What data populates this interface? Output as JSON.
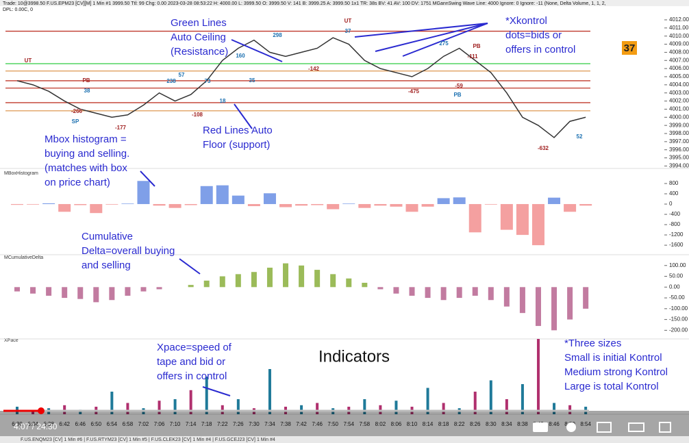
{
  "header": {
    "info": "Trade: 10@3998.50 F.US.EPM23 [CV][M] 1 Min #1 3999.50 Ttl: 99 Chg: 0.00 2023-03-28 08:53:22 H: 4000.00 L: 3999.50 O: 3999.50 V: 141 B: 3999.25 A: 3999.50 1x1 TR: 38s BV: 41 AV: 100 DV: 1751 MGannSwing Wave Line: 4000 Ignore: 0 Ignore: -11 (None, Delta Volume, 1, 1, 2,",
    "sub": "DPL: 0.00C, 0"
  },
  "badge": "37",
  "panel_labels": [
    "MBoxHistogram",
    "MCumulativeDelta",
    "XPace"
  ],
  "annotations": [
    [
      "Green Lines",
      "Auto Ceiling",
      "(Resistance)"
    ],
    [
      "Red Lines Auto",
      "Floor (support)"
    ],
    [
      "Mbox histogram =",
      "buying and selling.",
      "(matches with box",
      "on price chart)"
    ],
    [
      "Cumulative",
      "Delta=overall buying",
      "and selling"
    ],
    [
      "Xpace=speed of",
      "tape and bid or",
      "offers in control"
    ],
    [
      "*Xkontrol",
      "dots=bids or",
      "offers in control"
    ],
    [
      "*Three sizes",
      "Small is initial Kontrol",
      "Medium strong Kontrol",
      "Large is total Kontrol"
    ]
  ],
  "title_overlay": "Indicators",
  "swing_labels": [
    "298",
    "37",
    "275",
    "-111",
    "160",
    "-142",
    "57",
    "238",
    "73",
    "38",
    "PB",
    "PB",
    "UT",
    "UT",
    "-266",
    "SP",
    "-177",
    "-108",
    "35",
    "-475",
    "-59",
    "PB",
    "-632",
    "52",
    "18"
  ],
  "video_time": "4:07 / 24:30",
  "tabs": "F.US.ENQM23 [CV] 1 Min #6 | F.US.RTYM23 [CV] 1 Min #5 | F.US.CLEK23 [CV] 1 Min #4 | F.US.GCEJ23 [CV] 1 Min #4",
  "chart_data": [
    {
      "type": "line",
      "name": "price",
      "color": "#333333",
      "values": [
        4004.5,
        4004,
        4003.2,
        4002,
        4001,
        4000.5,
        4000,
        4000.3,
        4001.5,
        4003,
        4002,
        4002.8,
        4004.5,
        4007,
        4008.5,
        4009.5,
        4008,
        4007.5,
        4008,
        4008.5,
        4009.8,
        4009,
        4007,
        4006,
        4005.5,
        4005,
        4006,
        4007.5,
        4008.5,
        4007,
        4005.5,
        4003,
        4000,
        3999,
        3997.5,
        3999.5,
        4000
      ],
      "ylim": [
        3993.7,
        4013.6
      ],
      "yticks": [
        {
          "value": 4012,
          "label": "4012.00"
        },
        {
          "value": 4011,
          "label": "4011.00"
        },
        {
          "value": 4010,
          "label": "4010.00"
        },
        {
          "value": 4009,
          "label": "4009.00"
        },
        {
          "value": 4008,
          "label": "4008.00"
        },
        {
          "value": 4007,
          "label": "4007.00"
        },
        {
          "value": 4006,
          "label": "4006.00"
        },
        {
          "value": 4005,
          "label": "4005.00"
        },
        {
          "value": 4004,
          "label": "4004.00"
        },
        {
          "value": 4003,
          "label": "4003.00"
        },
        {
          "value": 4002,
          "label": "4002.00"
        },
        {
          "value": 4001,
          "label": "4001.00"
        },
        {
          "value": 4000,
          "label": "4000.00"
        },
        {
          "value": 3999,
          "label": "3999.00"
        },
        {
          "value": 3998,
          "label": "3998.00"
        },
        {
          "value": 3997,
          "label": "3997.00"
        },
        {
          "value": 3996,
          "label": "3996.00"
        },
        {
          "value": 3995,
          "label": "3995.00"
        },
        {
          "value": 3994,
          "label": "3994.00"
        }
      ],
      "levels": [
        {
          "price": 4010.6,
          "color": "#c0392b"
        },
        {
          "price": 4006.6,
          "color": "#2ecc40"
        },
        {
          "price": 4005.7,
          "color": "#e0a060"
        },
        {
          "price": 4004.5,
          "color": "#c0392b"
        },
        {
          "price": 4003.6,
          "color": "#c0392b"
        },
        {
          "price": 4001.8,
          "color": "#c0392b"
        },
        {
          "price": 4000.8,
          "color": "#e0a060"
        }
      ]
    },
    {
      "type": "bar",
      "name": "mbox",
      "pos_color": "#7f9fe8",
      "neg_color": "#f4a0a0",
      "values": [
        -30,
        -20,
        30,
        -300,
        -40,
        -350,
        -20,
        20,
        900,
        -60,
        -150,
        -40,
        700,
        730,
        330,
        -80,
        420,
        -120,
        -60,
        -40,
        -200,
        20,
        -150,
        -60,
        -100,
        -300,
        -100,
        230,
        260,
        -1100,
        -20,
        -1000,
        -1200,
        -1600,
        250,
        -300,
        -60
      ],
      "ylim": [
        -1970,
        1280
      ],
      "yticks": [
        800,
        400,
        0,
        -400,
        -800,
        -1200,
        -1600
      ]
    },
    {
      "type": "bar",
      "name": "cumdelta",
      "pos_color": "#9bbb59",
      "neg_color": "#c27ba0",
      "values": [
        -20,
        -30,
        -40,
        -50,
        -55,
        -70,
        -60,
        -40,
        -20,
        -10,
        0,
        10,
        30,
        50,
        60,
        70,
        90,
        110,
        100,
        80,
        60,
        40,
        20,
        -10,
        -30,
        -40,
        -50,
        -60,
        -50,
        -40,
        -60,
        -90,
        -120,
        -180,
        -200,
        -150,
        -100
      ],
      "ylim": [
        -240,
        150
      ],
      "yticks": [
        {
          "value": 100,
          "label": "100.00"
        },
        {
          "value": 50,
          "label": "50.00"
        },
        {
          "value": 0,
          "label": "0.00"
        },
        {
          "value": -50,
          "label": "-50.00"
        },
        {
          "value": -100,
          "label": "-100.00"
        },
        {
          "value": -150,
          "label": "-150.00"
        },
        {
          "value": -200,
          "label": "-200.00"
        }
      ]
    },
    {
      "type": "bar",
      "name": "xpace",
      "pos_color": "#1f7a99",
      "neg_color": "#b0306e",
      "categories": [
        "6:30",
        "6:34",
        "6:38",
        "6:42",
        "6:46",
        "6:50",
        "6:54",
        "6:58",
        "7:02",
        "7:06",
        "7:10",
        "7:14",
        "7:18",
        "7:22",
        "7:26",
        "7:30",
        "7:34",
        "7:38",
        "7:42",
        "7:46",
        "7:50",
        "7:54",
        "7:58",
        "8:02",
        "8:06",
        "8:10",
        "8:14",
        "8:18",
        "8:22",
        "8:26",
        "8:30",
        "8:34",
        "8:38",
        "8:42",
        "8:46",
        "8:50",
        "8:54"
      ],
      "values": [
        10,
        5,
        8,
        12,
        6,
        10,
        30,
        15,
        8,
        18,
        20,
        32,
        50,
        12,
        20,
        8,
        60,
        10,
        12,
        15,
        8,
        10,
        20,
        12,
        18,
        10,
        35,
        15,
        8,
        30,
        45,
        20,
        40,
        100,
        15,
        12,
        10
      ],
      "ylim": [
        0,
        100
      ]
    }
  ]
}
